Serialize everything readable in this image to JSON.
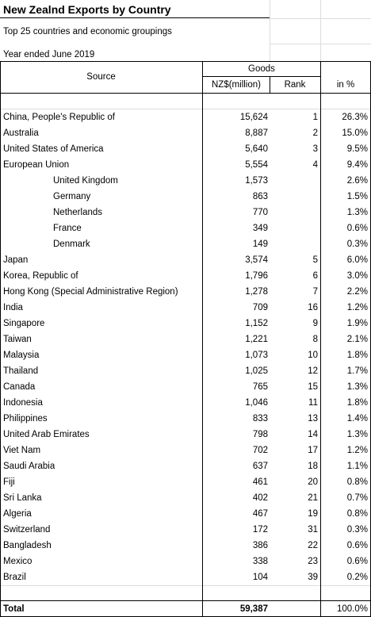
{
  "title": "New Zealnd Exports by Country",
  "subtitle": "Top 25 countries and economic groupings",
  "period": "Year ended June 2019",
  "headers": {
    "source": "Source",
    "goods": "Goods",
    "value": "NZ$(million)",
    "rank": "Rank",
    "percent": "in %"
  },
  "rows": [
    {
      "source": "China, People's Republic of",
      "value": "15,624",
      "rank": "1",
      "percent": "26.3%",
      "indent": false
    },
    {
      "source": "Australia",
      "value": "8,887",
      "rank": "2",
      "percent": "15.0%",
      "indent": false
    },
    {
      "source": "United States of America",
      "value": "5,640",
      "rank": "3",
      "percent": "9.5%",
      "indent": false
    },
    {
      "source": "European Union",
      "value": "5,554",
      "rank": "4",
      "percent": "9.4%",
      "indent": false
    },
    {
      "source": "United Kingdom",
      "value": "1,573",
      "rank": "",
      "percent": "2.6%",
      "indent": true
    },
    {
      "source": "Germany",
      "value": "863",
      "rank": "",
      "percent": "1.5%",
      "indent": true
    },
    {
      "source": "Netherlands",
      "value": "770",
      "rank": "",
      "percent": "1.3%",
      "indent": true
    },
    {
      "source": "France",
      "value": "349",
      "rank": "",
      "percent": "0.6%",
      "indent": true
    },
    {
      "source": "Denmark",
      "value": "149",
      "rank": "",
      "percent": "0.3%",
      "indent": true
    },
    {
      "source": "Japan",
      "value": "3,574",
      "rank": "5",
      "percent": "6.0%",
      "indent": false
    },
    {
      "source": "Korea, Republic of",
      "value": "1,796",
      "rank": "6",
      "percent": "3.0%",
      "indent": false
    },
    {
      "source": "Hong Kong (Special Administrative Region)",
      "value": "1,278",
      "rank": "7",
      "percent": "2.2%",
      "indent": false
    },
    {
      "source": "India",
      "value": "709",
      "rank": "16",
      "percent": "1.2%",
      "indent": false
    },
    {
      "source": "Singapore",
      "value": "1,152",
      "rank": "9",
      "percent": "1.9%",
      "indent": false
    },
    {
      "source": "Taiwan",
      "value": "1,221",
      "rank": "8",
      "percent": "2.1%",
      "indent": false
    },
    {
      "source": "Malaysia",
      "value": "1,073",
      "rank": "10",
      "percent": "1.8%",
      "indent": false
    },
    {
      "source": "Thailand",
      "value": "1,025",
      "rank": "12",
      "percent": "1.7%",
      "indent": false
    },
    {
      "source": "Canada",
      "value": "765",
      "rank": "15",
      "percent": "1.3%",
      "indent": false
    },
    {
      "source": "Indonesia",
      "value": "1,046",
      "rank": "11",
      "percent": "1.8%",
      "indent": false
    },
    {
      "source": "Philippines",
      "value": "833",
      "rank": "13",
      "percent": "1.4%",
      "indent": false
    },
    {
      "source": "United Arab Emirates",
      "value": "798",
      "rank": "14",
      "percent": "1.3%",
      "indent": false
    },
    {
      "source": "Viet Nam",
      "value": "702",
      "rank": "17",
      "percent": "1.2%",
      "indent": false
    },
    {
      "source": "Saudi Arabia",
      "value": "637",
      "rank": "18",
      "percent": "1.1%",
      "indent": false
    },
    {
      "source": "Fiji",
      "value": "461",
      "rank": "20",
      "percent": "0.8%",
      "indent": false
    },
    {
      "source": "Sri Lanka",
      "value": "402",
      "rank": "21",
      "percent": "0.7%",
      "indent": false
    },
    {
      "source": "Algeria",
      "value": "467",
      "rank": "19",
      "percent": "0.8%",
      "indent": false
    },
    {
      "source": "Switzerland",
      "value": "172",
      "rank": "31",
      "percent": "0.3%",
      "indent": false
    },
    {
      "source": "Bangladesh",
      "value": "386",
      "rank": "22",
      "percent": "0.6%",
      "indent": false
    },
    {
      "source": "Mexico",
      "value": "338",
      "rank": "23",
      "percent": "0.6%",
      "indent": false
    },
    {
      "source": "Brazil",
      "value": "104",
      "rank": "39",
      "percent": "0.2%",
      "indent": false
    }
  ],
  "total": {
    "label": "Total",
    "value": "59,387",
    "percent": "100.0%"
  }
}
